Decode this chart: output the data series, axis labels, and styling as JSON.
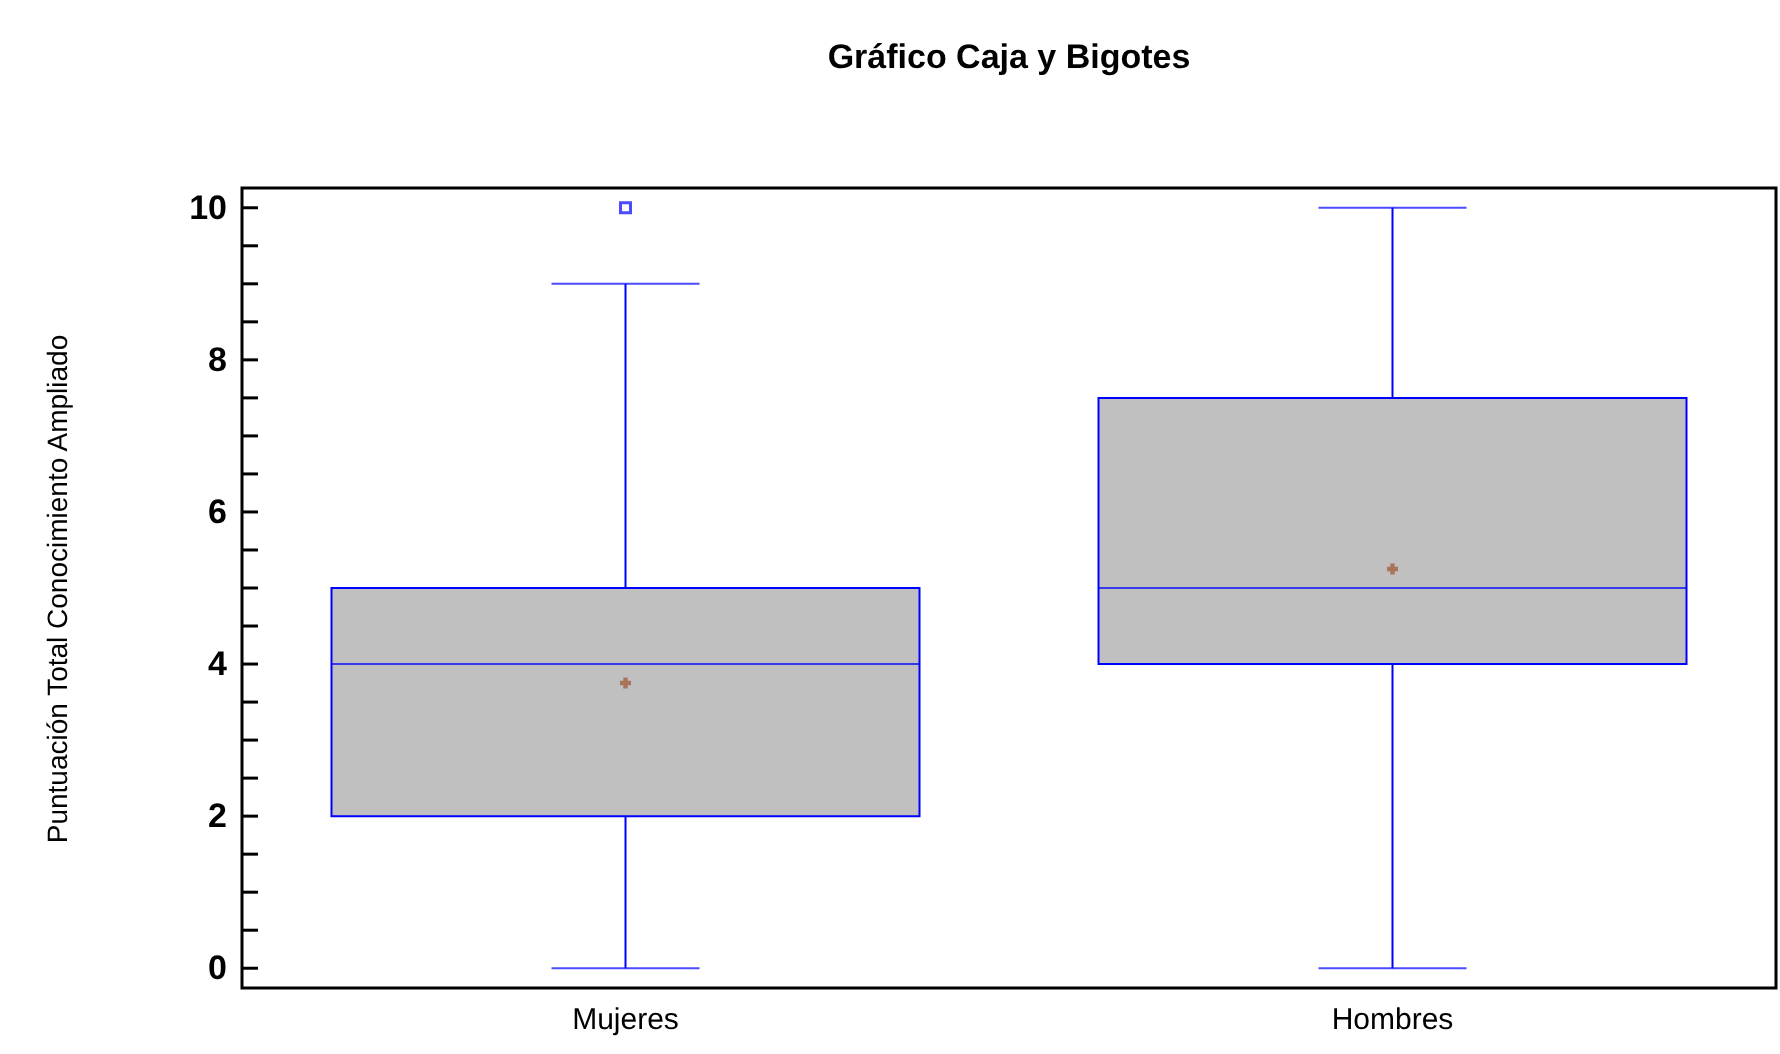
{
  "chart_data": {
    "type": "box",
    "title": "Gráfico Caja y Bigotes",
    "ylabel": "Puntuación Total Conocimiento Ampliado",
    "categories": [
      "Mujeres",
      "Hombres"
    ],
    "ylim": [
      -0.26,
      10.26
    ],
    "yticks": [
      0,
      {
        "value": 0.5,
        "label": null
      },
      {
        "value": 1,
        "label": null
      },
      {
        "value": 1.5,
        "label": null
      },
      2,
      {
        "value": 2.5,
        "label": null
      },
      {
        "value": 3,
        "label": null
      },
      {
        "value": 3.5,
        "label": null
      },
      4,
      {
        "value": 4.5,
        "label": null
      },
      {
        "value": 5,
        "label": null
      },
      {
        "value": 5.5,
        "label": null
      },
      6,
      {
        "value": 6.5,
        "label": null
      },
      {
        "value": 7,
        "label": null
      },
      {
        "value": 7.5,
        "label": null
      },
      8,
      {
        "value": 8.5,
        "label": null
      },
      {
        "value": 9,
        "label": null
      },
      {
        "value": 9.5,
        "label": null
      },
      10
    ],
    "grid": false,
    "series": [
      {
        "color": "#0000ff",
        "boxes": [
          {
            "low": 0,
            "q1": 2,
            "median": 4,
            "q3": 5,
            "high": 9,
            "mean": 3.75,
            "outliers": [
              10
            ]
          },
          {
            "low": 0,
            "q1": 4,
            "median": 5,
            "q3": 7.5,
            "high": 10,
            "mean": 5.25
          }
        ]
      }
    ]
  }
}
